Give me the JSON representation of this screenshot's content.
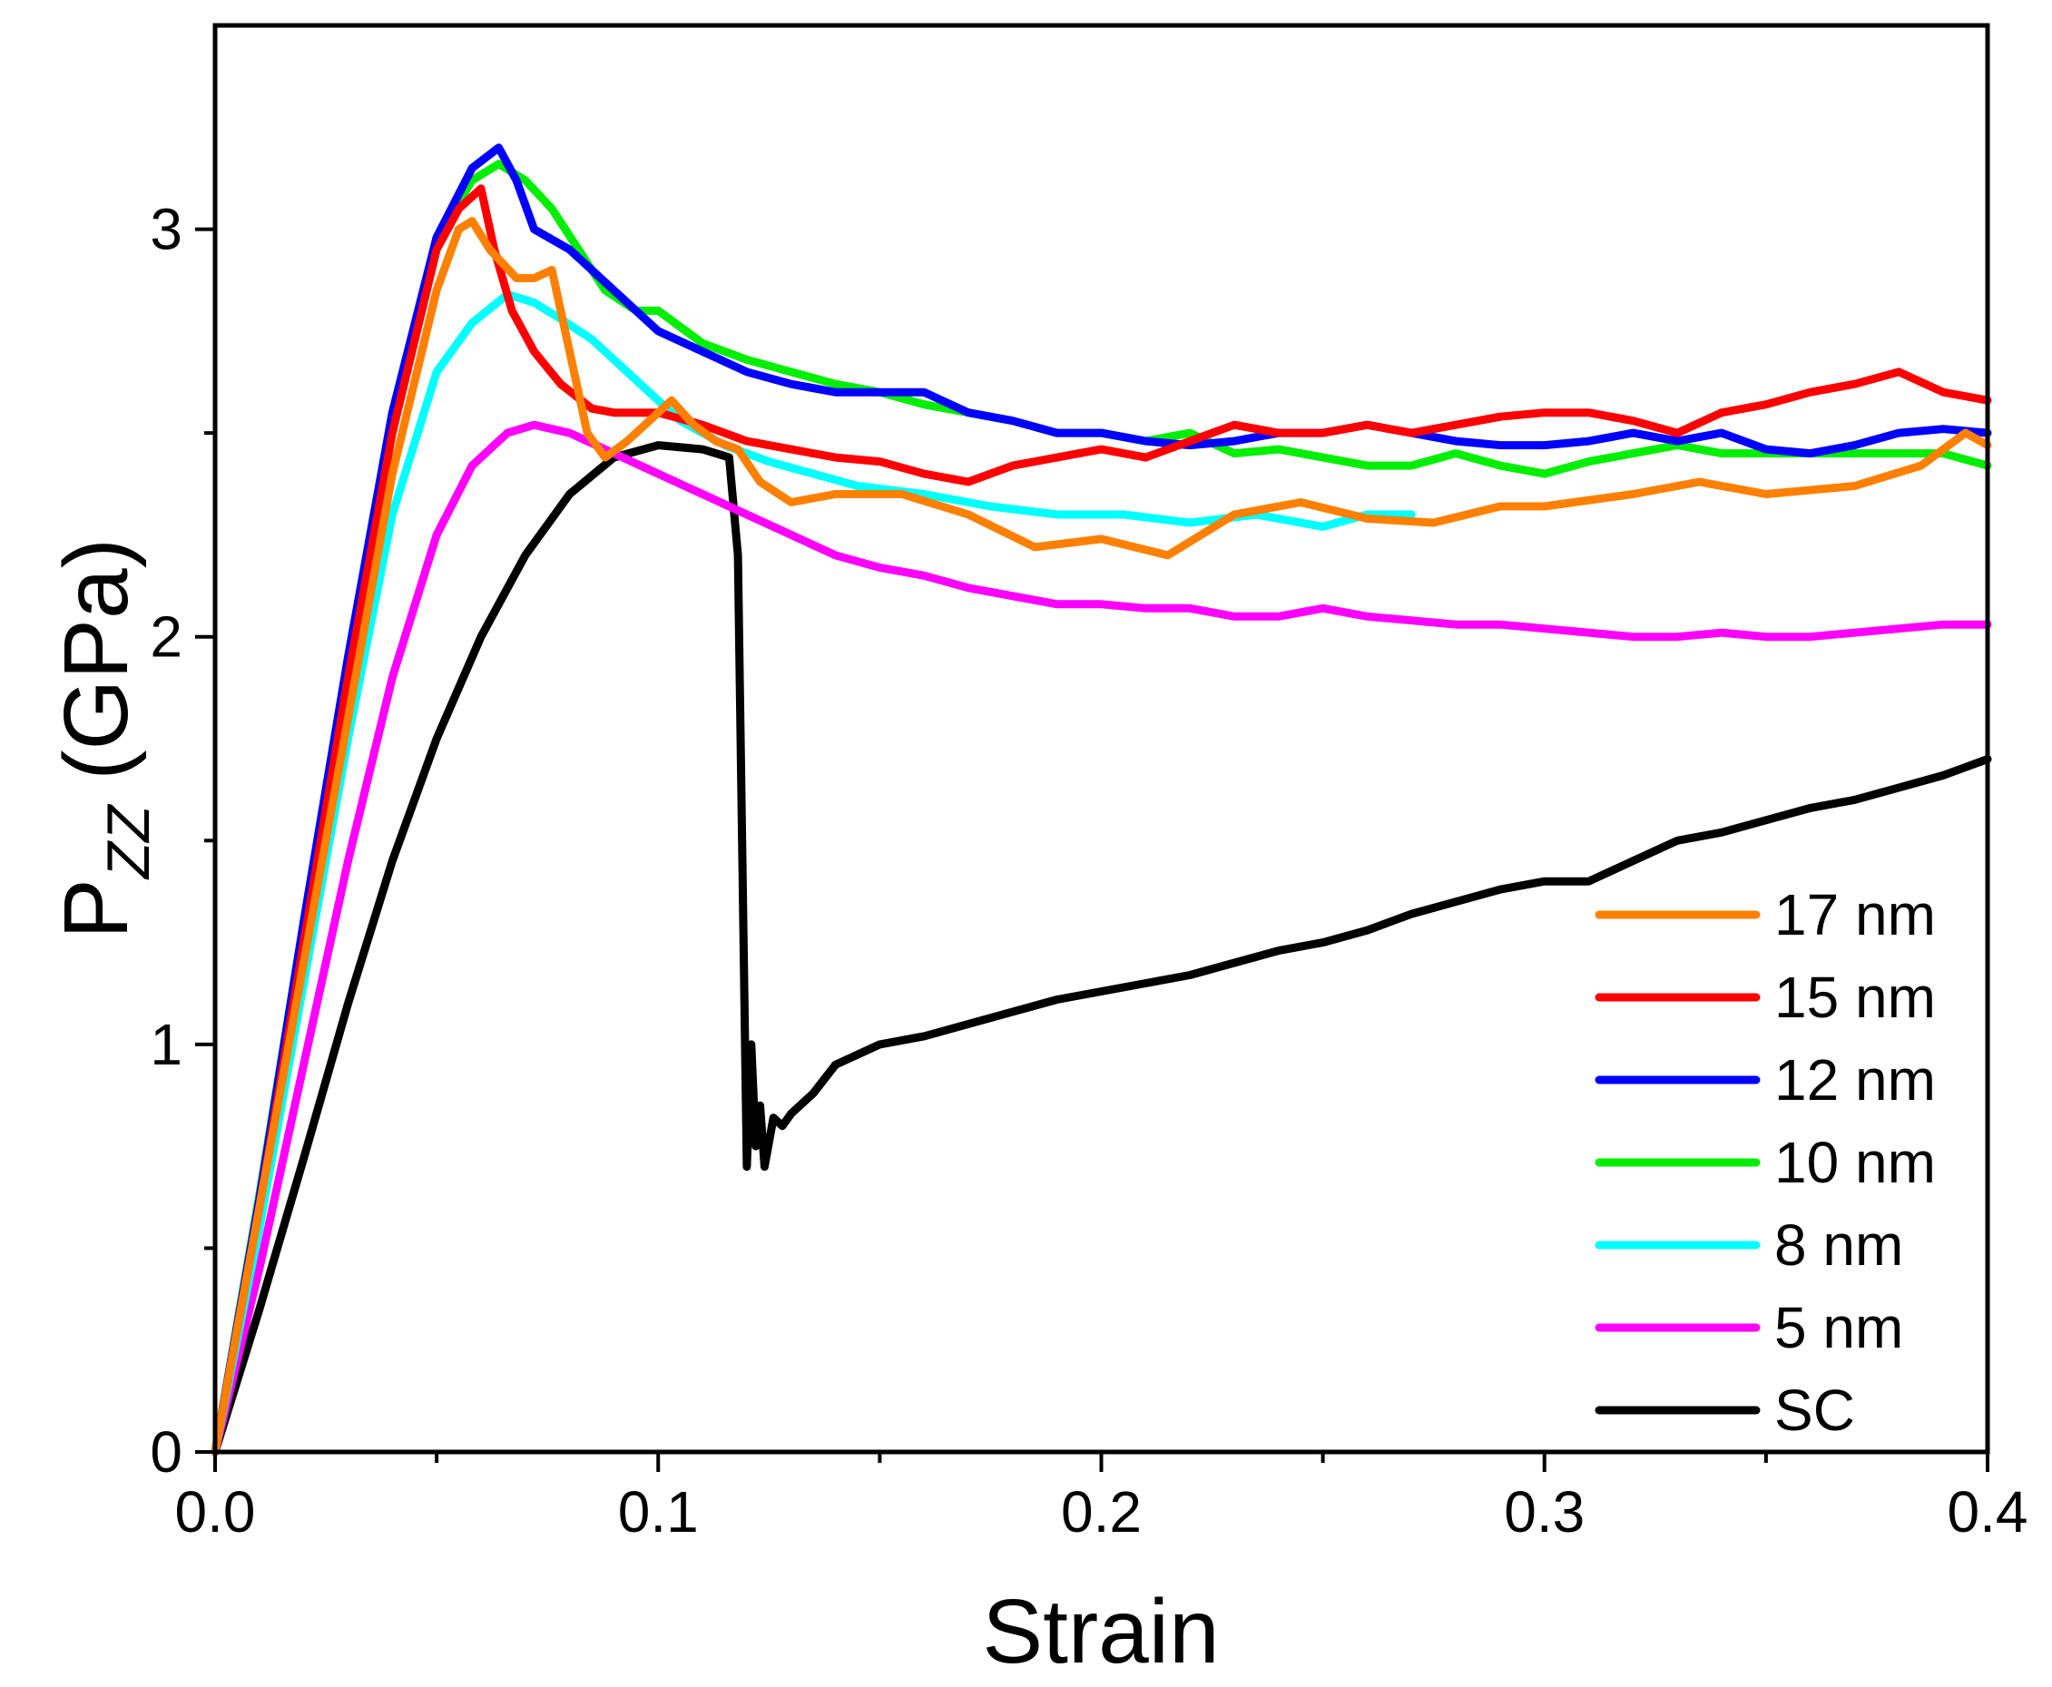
{
  "chart_data": {
    "type": "line",
    "title": "",
    "xlabel": "Strain",
    "ylabel_main": "P",
    "ylabel_sub": "ZZ",
    "ylabel_unit": " (GPa)",
    "xlim": [
      0.0,
      0.4
    ],
    "ylim": [
      0,
      3.5
    ],
    "xticks": [
      0.0,
      0.1,
      0.2,
      0.3,
      0.4
    ],
    "xtick_labels": [
      "0.0",
      "0.1",
      "0.2",
      "0.3",
      "0.4"
    ],
    "yticks": [
      0,
      1,
      2,
      3
    ],
    "ytick_labels": [
      "0",
      "1",
      "2",
      "3"
    ],
    "grid": false,
    "legend_position": "bottom-right",
    "series": [
      {
        "name": "17 nm",
        "color": "#ff8000",
        "x": [
          0.0,
          0.01,
          0.02,
          0.03,
          0.04,
          0.05,
          0.055,
          0.058,
          0.062,
          0.068,
          0.072,
          0.076,
          0.08,
          0.084,
          0.088,
          0.093,
          0.098,
          0.103,
          0.108,
          0.113,
          0.118,
          0.123,
          0.13,
          0.14,
          0.155,
          0.17,
          0.185,
          0.2,
          0.215,
          0.23,
          0.245,
          0.26,
          0.275,
          0.29,
          0.3,
          0.32,
          0.335,
          0.35,
          0.37,
          0.385,
          0.395,
          0.4
        ],
        "values": [
          0.0,
          0.6,
          1.2,
          1.8,
          2.4,
          2.85,
          3.0,
          3.02,
          2.95,
          2.88,
          2.88,
          2.9,
          2.7,
          2.5,
          2.44,
          2.48,
          2.53,
          2.58,
          2.52,
          2.48,
          2.46,
          2.38,
          2.33,
          2.35,
          2.35,
          2.3,
          2.22,
          2.24,
          2.2,
          2.3,
          2.33,
          2.29,
          2.28,
          2.32,
          2.32,
          2.35,
          2.38,
          2.35,
          2.37,
          2.42,
          2.5,
          2.47
        ]
      },
      {
        "name": "15 nm",
        "color": "#ff0000",
        "x": [
          0.0,
          0.01,
          0.02,
          0.03,
          0.04,
          0.05,
          0.055,
          0.06,
          0.063,
          0.067,
          0.072,
          0.078,
          0.085,
          0.09,
          0.1,
          0.11,
          0.12,
          0.13,
          0.14,
          0.15,
          0.16,
          0.17,
          0.18,
          0.19,
          0.2,
          0.21,
          0.22,
          0.23,
          0.24,
          0.25,
          0.26,
          0.27,
          0.28,
          0.29,
          0.3,
          0.31,
          0.32,
          0.33,
          0.34,
          0.35,
          0.36,
          0.37,
          0.38,
          0.39,
          0.4
        ],
        "values": [
          0.0,
          0.6,
          1.25,
          1.9,
          2.5,
          2.95,
          3.05,
          3.1,
          2.95,
          2.8,
          2.7,
          2.62,
          2.56,
          2.55,
          2.55,
          2.52,
          2.48,
          2.46,
          2.44,
          2.43,
          2.4,
          2.38,
          2.42,
          2.44,
          2.46,
          2.44,
          2.48,
          2.52,
          2.5,
          2.5,
          2.52,
          2.5,
          2.52,
          2.54,
          2.55,
          2.55,
          2.53,
          2.5,
          2.55,
          2.57,
          2.6,
          2.62,
          2.65,
          2.6,
          2.58
        ]
      },
      {
        "name": "12 nm",
        "color": "#0000ff",
        "x": [
          0.0,
          0.01,
          0.02,
          0.03,
          0.04,
          0.05,
          0.058,
          0.064,
          0.068,
          0.072,
          0.08,
          0.09,
          0.1,
          0.11,
          0.12,
          0.13,
          0.14,
          0.15,
          0.16,
          0.17,
          0.18,
          0.19,
          0.2,
          0.21,
          0.22,
          0.23,
          0.24,
          0.25,
          0.26,
          0.27,
          0.28,
          0.29,
          0.3,
          0.31,
          0.32,
          0.33,
          0.34,
          0.35,
          0.36,
          0.37,
          0.38,
          0.39,
          0.4
        ],
        "values": [
          0.0,
          0.62,
          1.3,
          1.95,
          2.55,
          2.98,
          3.15,
          3.2,
          3.12,
          3.0,
          2.95,
          2.85,
          2.75,
          2.7,
          2.65,
          2.62,
          2.6,
          2.6,
          2.6,
          2.55,
          2.53,
          2.5,
          2.5,
          2.48,
          2.47,
          2.48,
          2.5,
          2.5,
          2.52,
          2.5,
          2.48,
          2.47,
          2.47,
          2.48,
          2.5,
          2.48,
          2.5,
          2.46,
          2.45,
          2.47,
          2.5,
          2.51,
          2.5
        ]
      },
      {
        "name": "10 nm",
        "color": "#00ee00",
        "x": [
          0.0,
          0.01,
          0.02,
          0.03,
          0.04,
          0.05,
          0.058,
          0.064,
          0.07,
          0.076,
          0.082,
          0.088,
          0.095,
          0.1,
          0.11,
          0.12,
          0.13,
          0.14,
          0.15,
          0.16,
          0.17,
          0.18,
          0.19,
          0.2,
          0.21,
          0.22,
          0.23,
          0.24,
          0.25,
          0.26,
          0.27,
          0.28,
          0.29,
          0.3,
          0.31,
          0.32,
          0.33,
          0.34,
          0.35,
          0.36,
          0.37,
          0.38,
          0.39,
          0.4
        ],
        "values": [
          0.0,
          0.63,
          1.3,
          1.95,
          2.55,
          2.98,
          3.12,
          3.16,
          3.12,
          3.05,
          2.95,
          2.85,
          2.8,
          2.8,
          2.72,
          2.68,
          2.65,
          2.62,
          2.6,
          2.57,
          2.55,
          2.53,
          2.5,
          2.5,
          2.48,
          2.5,
          2.45,
          2.46,
          2.44,
          2.42,
          2.42,
          2.45,
          2.42,
          2.4,
          2.43,
          2.45,
          2.47,
          2.45,
          2.45,
          2.45,
          2.45,
          2.45,
          2.45,
          2.42
        ]
      },
      {
        "name": "8 nm",
        "color": "#00ffff",
        "x": [
          0.0,
          0.01,
          0.02,
          0.03,
          0.04,
          0.05,
          0.058,
          0.066,
          0.072,
          0.078,
          0.085,
          0.095,
          0.105,
          0.115,
          0.125,
          0.135,
          0.145,
          0.16,
          0.175,
          0.19,
          0.205,
          0.22,
          0.235,
          0.25,
          0.26,
          0.27
        ],
        "values": [
          0.0,
          0.55,
          1.15,
          1.75,
          2.3,
          2.65,
          2.77,
          2.84,
          2.82,
          2.78,
          2.73,
          2.63,
          2.53,
          2.47,
          2.43,
          2.4,
          2.37,
          2.35,
          2.32,
          2.3,
          2.3,
          2.28,
          2.3,
          2.27,
          2.3,
          2.3
        ]
      },
      {
        "name": "5 nm",
        "color": "#ff00ff",
        "x": [
          0.0,
          0.01,
          0.02,
          0.03,
          0.04,
          0.05,
          0.058,
          0.066,
          0.072,
          0.08,
          0.09,
          0.1,
          0.11,
          0.12,
          0.13,
          0.14,
          0.15,
          0.16,
          0.17,
          0.18,
          0.19,
          0.2,
          0.21,
          0.22,
          0.23,
          0.24,
          0.25,
          0.26,
          0.27,
          0.28,
          0.29,
          0.3,
          0.31,
          0.32,
          0.33,
          0.34,
          0.35,
          0.36,
          0.37,
          0.38,
          0.39,
          0.4
        ],
        "values": [
          0.0,
          0.45,
          0.95,
          1.45,
          1.9,
          2.25,
          2.42,
          2.5,
          2.52,
          2.5,
          2.45,
          2.4,
          2.35,
          2.3,
          2.25,
          2.2,
          2.17,
          2.15,
          2.12,
          2.1,
          2.08,
          2.08,
          2.07,
          2.07,
          2.05,
          2.05,
          2.07,
          2.05,
          2.04,
          2.03,
          2.03,
          2.02,
          2.01,
          2.0,
          2.0,
          2.01,
          2.0,
          2.0,
          2.01,
          2.02,
          2.03,
          2.03
        ]
      },
      {
        "name": "SC",
        "color": "#000000",
        "x": [
          0.0,
          0.01,
          0.02,
          0.03,
          0.04,
          0.05,
          0.06,
          0.07,
          0.08,
          0.09,
          0.1,
          0.11,
          0.116,
          0.118,
          0.12,
          0.121,
          0.122,
          0.123,
          0.124,
          0.126,
          0.128,
          0.13,
          0.135,
          0.14,
          0.15,
          0.16,
          0.17,
          0.18,
          0.19,
          0.2,
          0.21,
          0.22,
          0.23,
          0.24,
          0.25,
          0.26,
          0.27,
          0.28,
          0.29,
          0.3,
          0.31,
          0.32,
          0.33,
          0.34,
          0.35,
          0.36,
          0.37,
          0.38,
          0.39,
          0.4
        ],
        "values": [
          0.0,
          0.35,
          0.72,
          1.1,
          1.45,
          1.75,
          2.0,
          2.2,
          2.35,
          2.44,
          2.47,
          2.46,
          2.44,
          2.2,
          0.7,
          1.0,
          0.75,
          0.85,
          0.7,
          0.82,
          0.8,
          0.83,
          0.88,
          0.95,
          1.0,
          1.02,
          1.05,
          1.08,
          1.11,
          1.13,
          1.15,
          1.17,
          1.2,
          1.23,
          1.25,
          1.28,
          1.32,
          1.35,
          1.38,
          1.4,
          1.4,
          1.45,
          1.5,
          1.52,
          1.55,
          1.58,
          1.6,
          1.63,
          1.66,
          1.7
        ]
      }
    ]
  }
}
